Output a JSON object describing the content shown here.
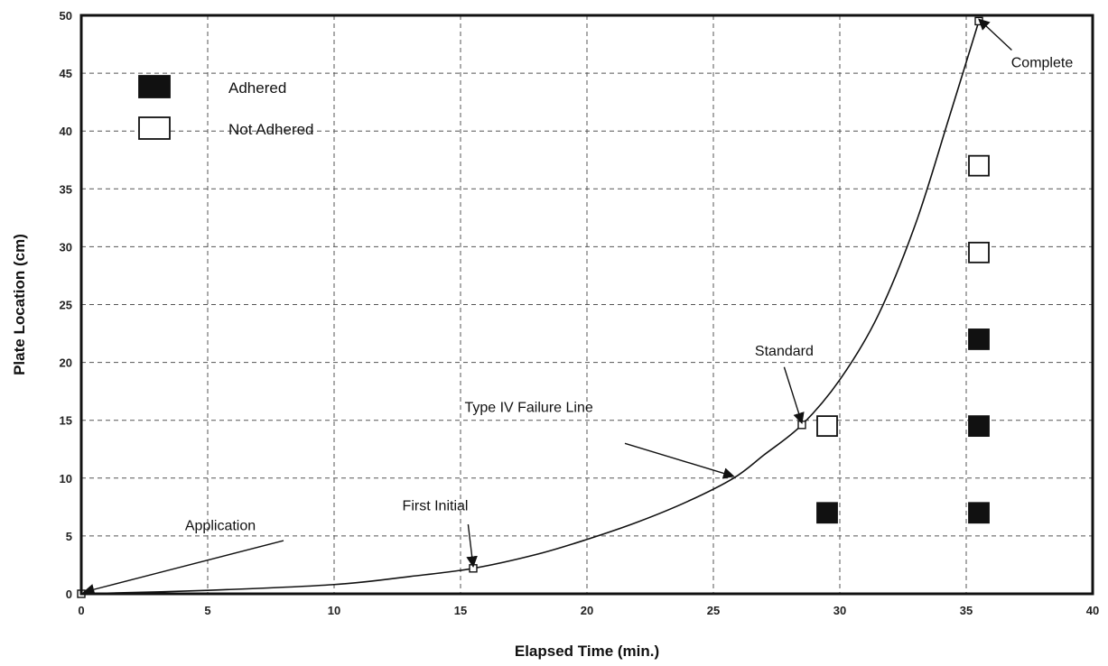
{
  "chart_data": {
    "type": "scatter",
    "xlabel": "Elapsed Time (min.)",
    "ylabel": "Plate Location (cm)",
    "xlim": [
      0,
      40
    ],
    "ylim": [
      0,
      50
    ],
    "x_ticks": [
      0,
      5,
      10,
      15,
      20,
      25,
      30,
      35,
      40
    ],
    "y_ticks": [
      0,
      5,
      10,
      15,
      20,
      25,
      30,
      35,
      40,
      45,
      50
    ],
    "grid": true,
    "legend_position": "top-left",
    "legend": [
      {
        "label": "Adhered",
        "marker": "filled-square",
        "color": "#111111"
      },
      {
        "label": "Not Adhered",
        "marker": "open-square",
        "color": "#ffffff"
      }
    ],
    "series": [
      {
        "name": "Adhered",
        "marker": "filled-square",
        "points": [
          {
            "x": 29.5,
            "y": 7
          },
          {
            "x": 35.5,
            "y": 7
          },
          {
            "x": 35.5,
            "y": 14.5
          },
          {
            "x": 35.5,
            "y": 22
          }
        ]
      },
      {
        "name": "Not Adhered",
        "marker": "open-square",
        "points": [
          {
            "x": 29.5,
            "y": 14.5
          },
          {
            "x": 35.5,
            "y": 29.5
          },
          {
            "x": 35.5,
            "y": 37
          }
        ]
      }
    ],
    "failure_line": {
      "label": "Type IV Failure Line",
      "points": [
        {
          "x": 0,
          "y": 0
        },
        {
          "x": 5,
          "y": 0.3
        },
        {
          "x": 10,
          "y": 0.8
        },
        {
          "x": 13,
          "y": 1.5
        },
        {
          "x": 15.5,
          "y": 2.2
        },
        {
          "x": 18,
          "y": 3.4
        },
        {
          "x": 20,
          "y": 4.7
        },
        {
          "x": 22,
          "y": 6.2
        },
        {
          "x": 24,
          "y": 8
        },
        {
          "x": 25.8,
          "y": 10
        },
        {
          "x": 27,
          "y": 12
        },
        {
          "x": 28.5,
          "y": 14.6
        },
        {
          "x": 30,
          "y": 18.5
        },
        {
          "x": 31.5,
          "y": 24
        },
        {
          "x": 33,
          "y": 32
        },
        {
          "x": 34.3,
          "y": 41
        },
        {
          "x": 35.5,
          "y": 49.5
        }
      ]
    },
    "marked_points": [
      {
        "x": 0,
        "y": 0
      },
      {
        "x": 15.5,
        "y": 2.2
      },
      {
        "x": 28.5,
        "y": 14.6
      },
      {
        "x": 35.5,
        "y": 49.5
      }
    ],
    "annotations": [
      {
        "text": "Application",
        "label_x": 5.5,
        "label_y": 5.5,
        "point_x": 0,
        "point_y": 0
      },
      {
        "text": "First  Initial",
        "label_x": 14,
        "label_y": 7.2,
        "point_x": 15.5,
        "point_y": 2.2
      },
      {
        "text": "Type IV Failure Line",
        "label_x": 17.7,
        "label_y": 15.7,
        "point_x": 25.8,
        "point_y": 10
      },
      {
        "text": "Standard",
        "label_x": 27.8,
        "label_y": 20.6,
        "point_x": 28.5,
        "point_y": 14.6
      },
      {
        "text": "Complete",
        "label_x": 38,
        "label_y": 45.5,
        "point_x": 35.5,
        "point_y": 49.5
      }
    ]
  }
}
